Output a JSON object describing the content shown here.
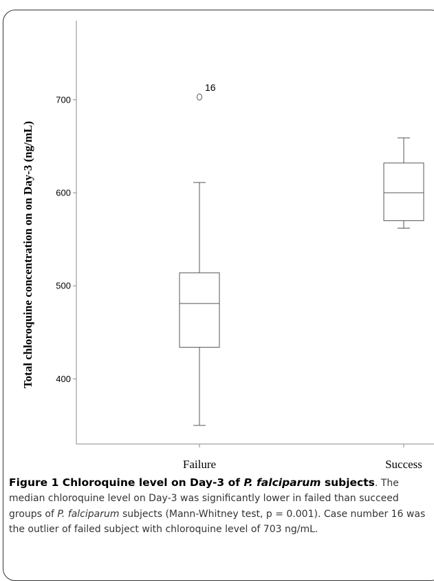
{
  "chart_data": {
    "type": "boxplot",
    "ylabel": "Total chloroquine concentration on on Day-3 (ng/mL)",
    "xlabel": "",
    "ylim": [
      330,
      785
    ],
    "yticks": [
      400,
      500,
      600,
      700
    ],
    "grid": false,
    "categories": [
      "Failure",
      "Success"
    ],
    "boxes": [
      {
        "category": "Failure",
        "min": 350,
        "q1": 434,
        "median": 481,
        "q3": 514,
        "max": 611,
        "outliers": [
          {
            "value": 703,
            "label": "16"
          }
        ]
      },
      {
        "category": "Success",
        "min": 562,
        "q1": 570,
        "median": 600,
        "q3": 632,
        "max": 659,
        "outliers": []
      }
    ]
  },
  "caption": {
    "title": "Figure 1 Chloroquine level on Day-3 of ",
    "title_italic": "P. falciparum",
    "title_end": " subjects",
    "title_period": ".",
    "text_1": " The median chloroquine level on Day-3 was significantly lower in failed than succeed groups of ",
    "text_italic": "P. falciparum",
    "text_2": " subjects (Mann-Whitney test, p = 0.001). Case number 16 was the outlier of failed subject with chloroquine level of 703 ng/mL."
  },
  "colors": {
    "box": "#ffffff",
    "stroke": "#555555",
    "frame": "#333333"
  }
}
